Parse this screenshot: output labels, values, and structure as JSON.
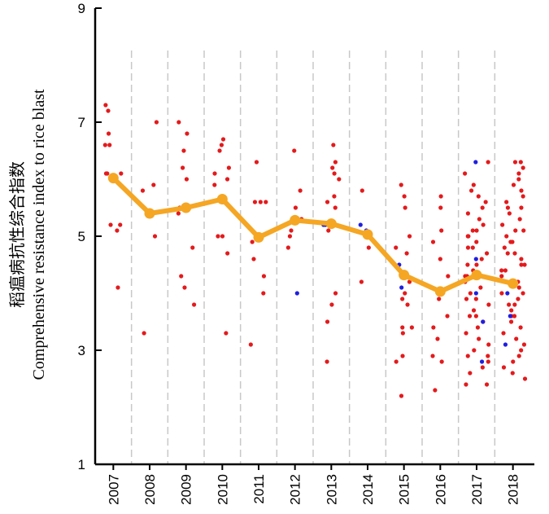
{
  "chart_data": {
    "type": "scatter",
    "ylabel_cn": "稻瘟病抗性综合指数",
    "ylabel_en": "Comprehensive resistance index to rice blast",
    "xlabel": "",
    "categories": [
      "2007",
      "2008",
      "2009",
      "2010",
      "2011",
      "2012",
      "2013",
      "2014",
      "2015",
      "2016",
      "2017",
      "2018"
    ],
    "ylim": [
      1,
      9
    ],
    "yticks": [
      1,
      3,
      5,
      7,
      9
    ],
    "grid": "vertical dashed separators between years",
    "colors": {
      "red_points": "#e41a1c",
      "blue_points": "#1f1fe0",
      "mean_line": "#f5a623",
      "separator": "#c8c8c8",
      "axis": "#000000"
    },
    "mean_series": {
      "values": [
        6.02,
        5.4,
        5.5,
        5.65,
        4.98,
        5.28,
        5.22,
        5.03,
        4.32,
        4.03,
        4.32,
        4.17
      ]
    },
    "red_points": [
      {
        "x": "2007",
        "y": [
          6.6,
          7.2,
          7.3,
          6.6,
          6.8,
          6.1,
          6.1,
          6.1,
          5.2,
          5.2,
          5.1,
          4.1
        ]
      },
      {
        "x": "2008",
        "y": [
          7.0,
          5.9,
          5.8,
          5.4,
          5.0,
          3.3
        ]
      },
      {
        "x": "2009",
        "y": [
          7.0,
          6.8,
          6.5,
          6.2,
          6.0,
          5.5,
          5.4,
          4.8,
          4.3,
          4.1,
          3.8
        ]
      },
      {
        "x": "2010",
        "y": [
          6.7,
          6.6,
          6.5,
          6.2,
          6.1,
          6.0,
          5.9,
          5.6,
          5.0,
          5.0,
          4.7,
          3.3
        ]
      },
      {
        "x": "2011",
        "y": [
          6.3,
          5.6,
          5.6,
          5.6,
          4.9,
          4.6,
          4.3,
          4.0,
          3.1
        ]
      },
      {
        "x": "2012",
        "y": [
          6.5,
          5.8,
          5.5,
          5.3,
          5.1,
          5.0,
          4.8
        ]
      },
      {
        "x": "2013",
        "y": [
          6.6,
          6.3,
          6.2,
          6.1,
          6.0,
          5.7,
          5.6,
          5.5,
          5.2,
          5.1,
          4.0,
          3.8,
          3.5,
          2.8
        ]
      },
      {
        "x": "2014",
        "y": [
          5.8,
          5.0,
          4.8,
          4.2
        ]
      },
      {
        "x": "2015",
        "y": [
          5.9,
          5.7,
          5.5,
          5.0,
          4.8,
          4.7,
          4.3,
          4.2,
          4.0,
          3.9,
          3.8,
          3.4,
          3.4,
          3.3,
          2.9,
          2.8,
          2.2
        ]
      },
      {
        "x": "2016",
        "y": [
          5.7,
          5.5,
          5.1,
          4.9,
          4.6,
          4.3,
          3.9,
          3.6,
          3.4,
          3.2,
          2.9,
          2.8,
          2.3
        ]
      },
      {
        "x": "2017",
        "y": [
          6.3,
          6.1,
          5.9,
          5.8,
          5.7,
          5.6,
          5.5,
          5.4,
          5.3,
          5.2,
          5.1,
          5.1,
          5.0,
          5.0,
          4.9,
          4.8,
          4.8,
          4.7,
          4.6,
          4.5,
          4.5,
          4.4,
          4.3,
          4.3,
          4.2,
          4.1,
          4.0,
          3.9,
          3.9,
          3.8,
          3.7,
          3.6,
          3.6,
          3.5,
          3.4,
          3.3,
          3.2,
          3.1,
          3.0,
          2.9,
          2.9,
          2.8,
          2.7,
          2.6,
          2.4,
          2.4
        ]
      },
      {
        "x": "2018",
        "y": [
          6.3,
          6.3,
          6.2,
          6.1,
          6.0,
          5.9,
          5.8,
          5.7,
          5.6,
          5.5,
          5.5,
          5.4,
          5.3,
          5.2,
          5.1,
          5.1,
          5.0,
          4.9,
          4.9,
          4.8,
          4.7,
          4.7,
          4.6,
          4.5,
          4.5,
          4.4,
          4.4,
          4.3,
          4.2,
          4.2,
          4.1,
          4.0,
          4.0,
          3.9,
          3.8,
          3.8,
          3.7,
          3.6,
          3.6,
          3.5,
          3.4,
          3.3,
          3.2,
          3.1,
          3.0,
          2.9,
          2.8,
          2.7,
          2.6,
          2.5
        ]
      }
    ],
    "blue_points": [
      {
        "x": "2012",
        "y": [
          4.0
        ]
      },
      {
        "x": "2013",
        "y": [
          5.2,
          5.2
        ]
      },
      {
        "x": "2014",
        "y": [
          5.2,
          5.1
        ]
      },
      {
        "x": "2015",
        "y": [
          4.5,
          4.1
        ]
      },
      {
        "x": "2017",
        "y": [
          6.3,
          4.6,
          4.0,
          3.5,
          2.8
        ]
      },
      {
        "x": "2018",
        "y": [
          4.0,
          3.6,
          3.1
        ]
      }
    ]
  }
}
